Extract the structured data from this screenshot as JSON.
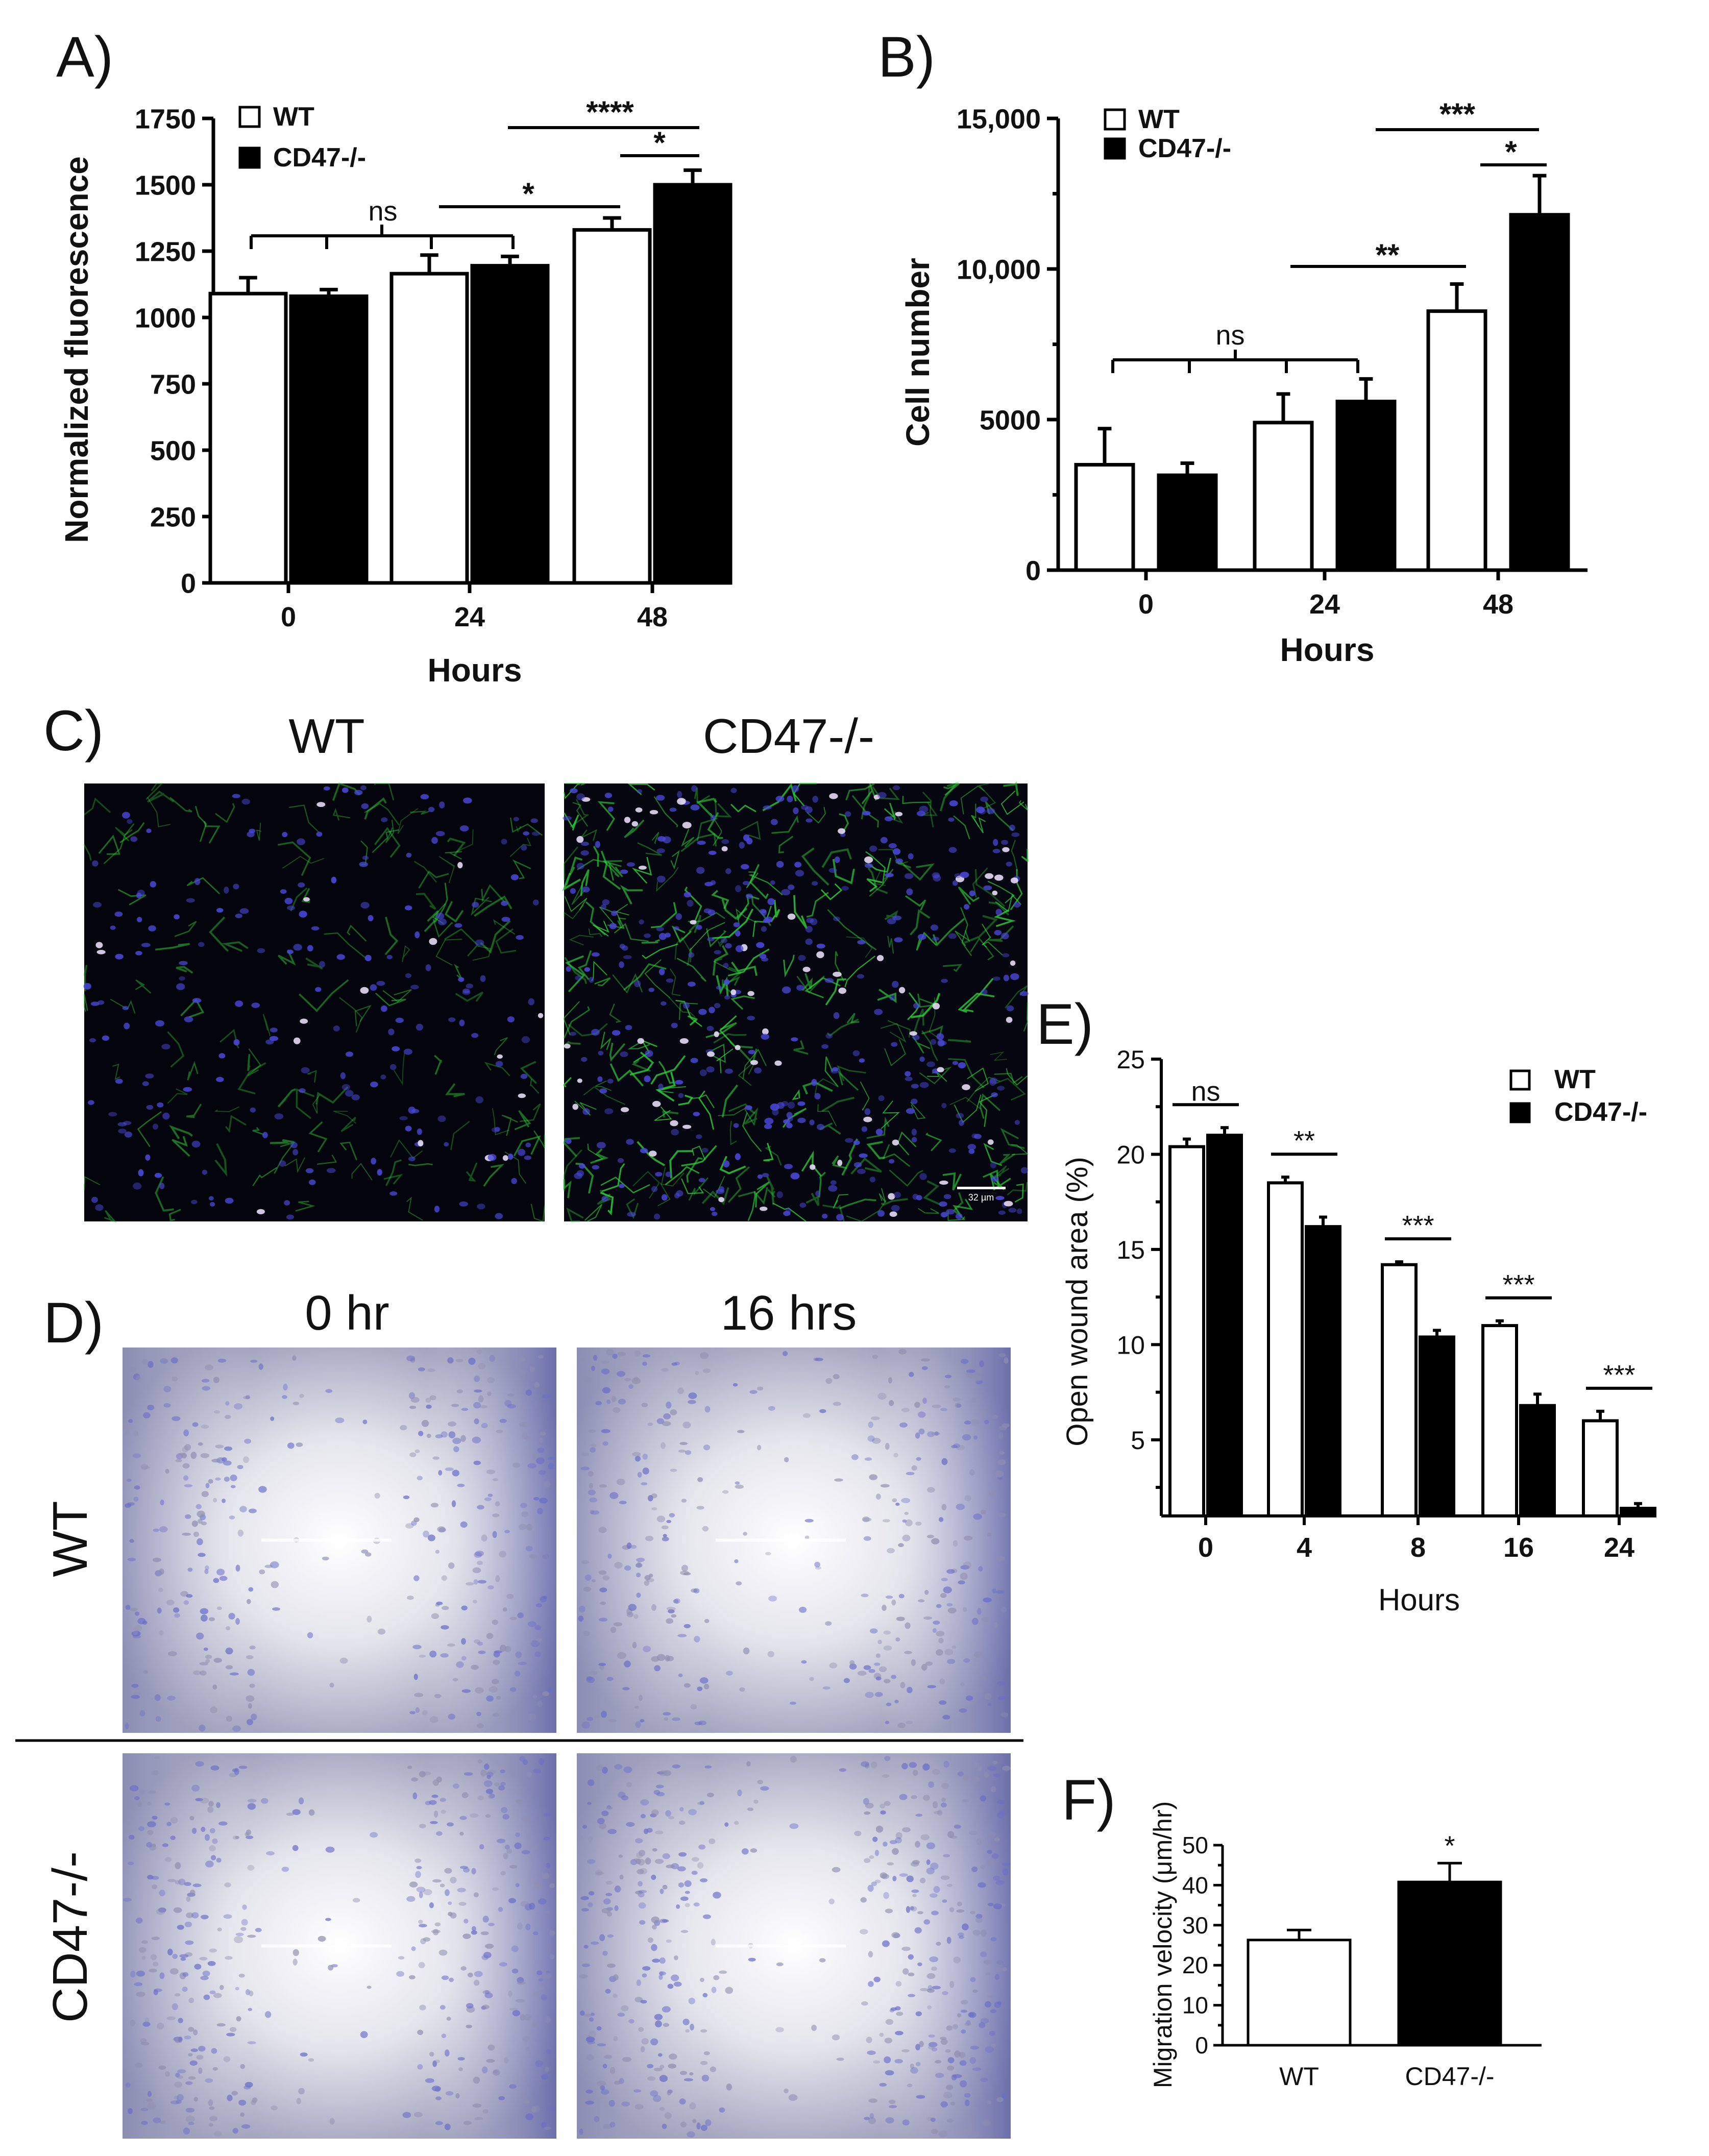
{
  "panels": {
    "a": "A)",
    "b": "B)",
    "c": "C)",
    "d": "D)",
    "e": "E)",
    "f": "F)"
  },
  "colors": {
    "wt": "#ffffff",
    "ko": "#000000",
    "axis": "#000000"
  },
  "legend": {
    "wt": "WT",
    "ko": "CD47-/-"
  },
  "micro": {
    "c_col_wt": "WT",
    "c_col_ko": "CD47-/-",
    "d_col_0": "0 hr",
    "d_col_16": "16 hrs",
    "d_row_wt": "WT",
    "d_row_ko": "CD47-/-",
    "scale_bar": "32 µm"
  },
  "chart_data": [
    {
      "id": "A",
      "type": "bar",
      "xlabel": "Hours",
      "ylabel": "Normalized fluorescence",
      "categories": [
        "0",
        "24",
        "48"
      ],
      "ylim": [
        0,
        1750
      ],
      "yticks": [
        "0",
        "250",
        "500",
        "750",
        "1000",
        "1250",
        "1500",
        "1750"
      ],
      "series": [
        {
          "name": "WT",
          "values": [
            1090,
            1165,
            1330
          ],
          "errors": [
            60,
            70,
            45
          ]
        },
        {
          "name": "CD47-/-",
          "values": [
            1080,
            1195,
            1500
          ],
          "errors": [
            25,
            35,
            55
          ]
        }
      ],
      "annotations": [
        {
          "text": "ns",
          "between": "0 to 24"
        },
        {
          "text": "*",
          "between": "24 CD47-/- to 48 WT"
        },
        {
          "text": "****",
          "between": "24 CD47-/- to 48 CD47-/-"
        },
        {
          "text": "*",
          "between": "48 WT to 48 CD47-/-"
        }
      ]
    },
    {
      "id": "B",
      "type": "bar",
      "xlabel": "Hours",
      "ylabel": "Cell number",
      "categories": [
        "0",
        "24",
        "48"
      ],
      "ylim": [
        0,
        15000
      ],
      "yticks": [
        "0",
        "5000",
        "10,000",
        "15,000"
      ],
      "series": [
        {
          "name": "WT",
          "values": [
            3500,
            4900,
            8600
          ],
          "errors": [
            1200,
            950,
            900
          ]
        },
        {
          "name": "CD47-/-",
          "values": [
            3150,
            5600,
            11800
          ],
          "errors": [
            400,
            750,
            1300
          ]
        }
      ],
      "annotations": [
        {
          "text": "ns",
          "between": "0 to 24"
        },
        {
          "text": "**",
          "between": "24 CD47-/- to 48 WT"
        },
        {
          "text": "***",
          "between": "24 CD47-/- to 48 CD47-/-"
        },
        {
          "text": "*",
          "between": "48 WT to 48 CD47-/-"
        }
      ]
    },
    {
      "id": "E",
      "type": "bar",
      "xlabel": "Hours",
      "ylabel": "Open wound area (%)",
      "categories": [
        "0",
        "4",
        "8",
        "16",
        "24"
      ],
      "ylim": [
        1,
        25
      ],
      "yticks": [
        "5",
        "10",
        "15",
        "20",
        "25"
      ],
      "series": [
        {
          "name": "WT",
          "values": [
            20.4,
            18.5,
            14.2,
            11.0,
            6.0
          ],
          "errors": [
            0.4,
            0.3,
            0.15,
            0.25,
            0.5
          ]
        },
        {
          "name": "CD47-/-",
          "values": [
            21.0,
            16.2,
            10.4,
            6.8,
            1.4
          ],
          "errors": [
            0.4,
            0.5,
            0.35,
            0.6,
            0.25
          ]
        }
      ],
      "annotations": [
        "ns",
        "**",
        "***",
        "***",
        "***"
      ]
    },
    {
      "id": "F",
      "type": "bar",
      "xlabel": "",
      "ylabel": "Migration velocity (μm/hr)",
      "categories": [
        "WT",
        "CD47-/-"
      ],
      "ylim": [
        0,
        50
      ],
      "yticks": [
        "0",
        "10",
        "20",
        "30",
        "40",
        "50"
      ],
      "values": [
        26.3,
        40.8
      ],
      "errors": [
        2.5,
        4.7
      ],
      "annotations": [
        "",
        "*"
      ]
    }
  ]
}
